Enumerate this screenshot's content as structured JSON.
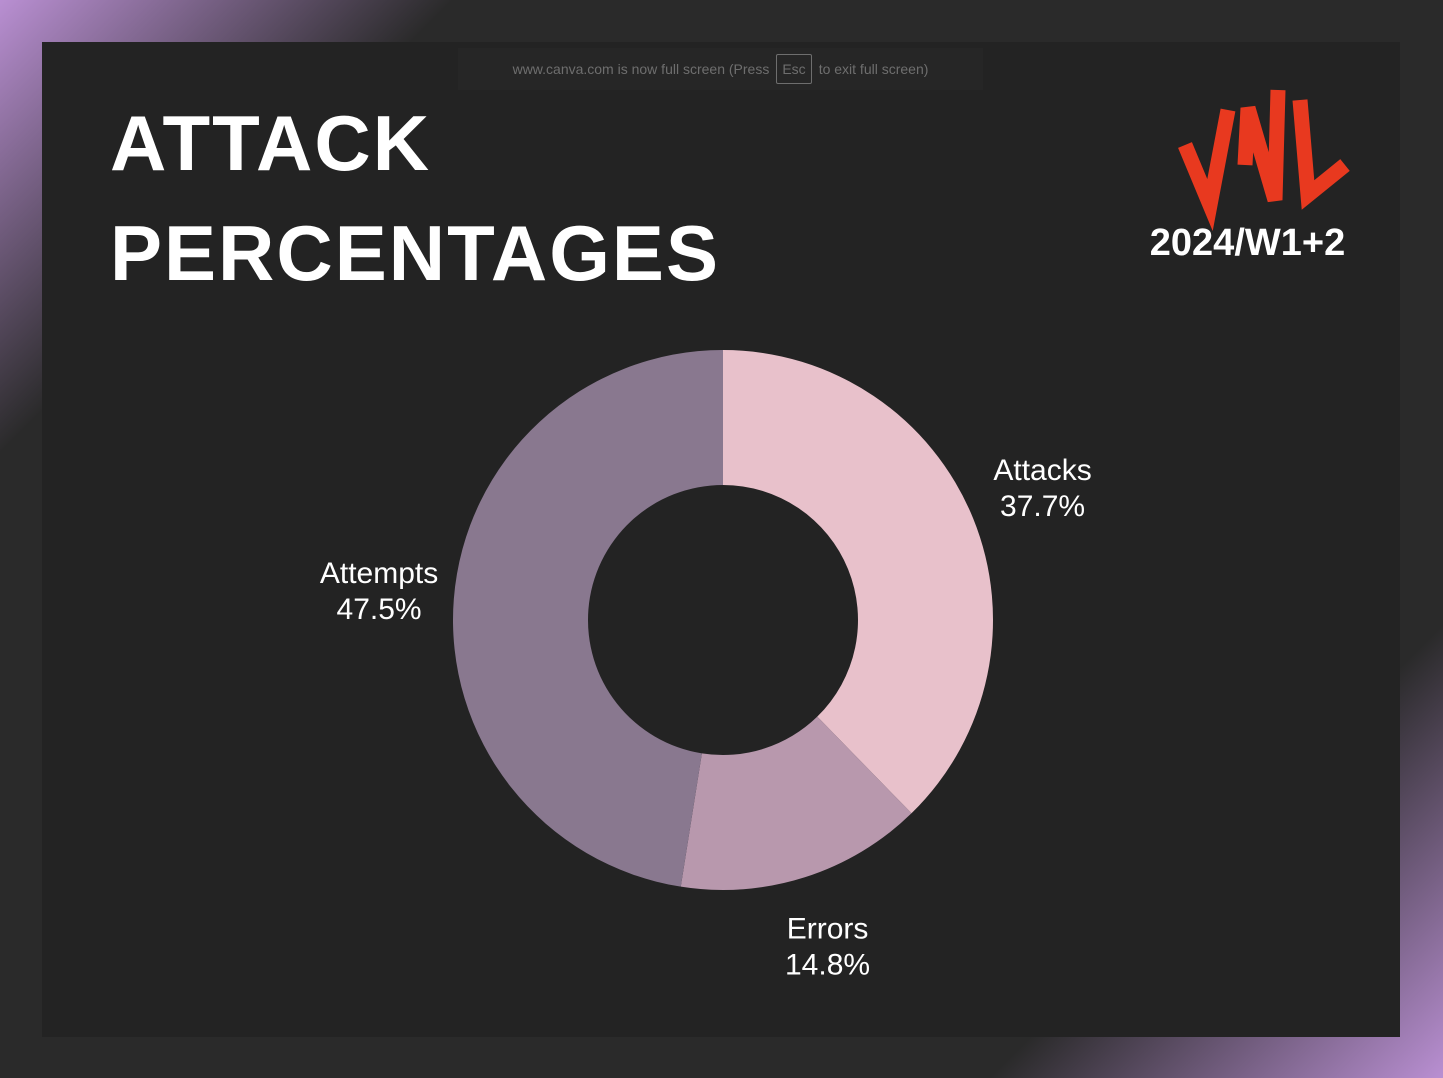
{
  "notice": {
    "before": "www.canva.com is now full screen (Press",
    "key": "Esc",
    "after": "to exit full screen)"
  },
  "subtitle": "2024/W1+2",
  "chart_data": {
    "type": "pie",
    "title": "ATTACK PERCENTAGES",
    "categories": [
      "Attacks",
      "Errors",
      "Attempts"
    ],
    "values": [
      37.7,
      14.8,
      47.5
    ],
    "value_labels": [
      "37.7%",
      "14.8%",
      "47.5%"
    ],
    "colors": [
      "#e8c1cb",
      "#b898ad",
      "#89788f"
    ],
    "hole": true
  }
}
